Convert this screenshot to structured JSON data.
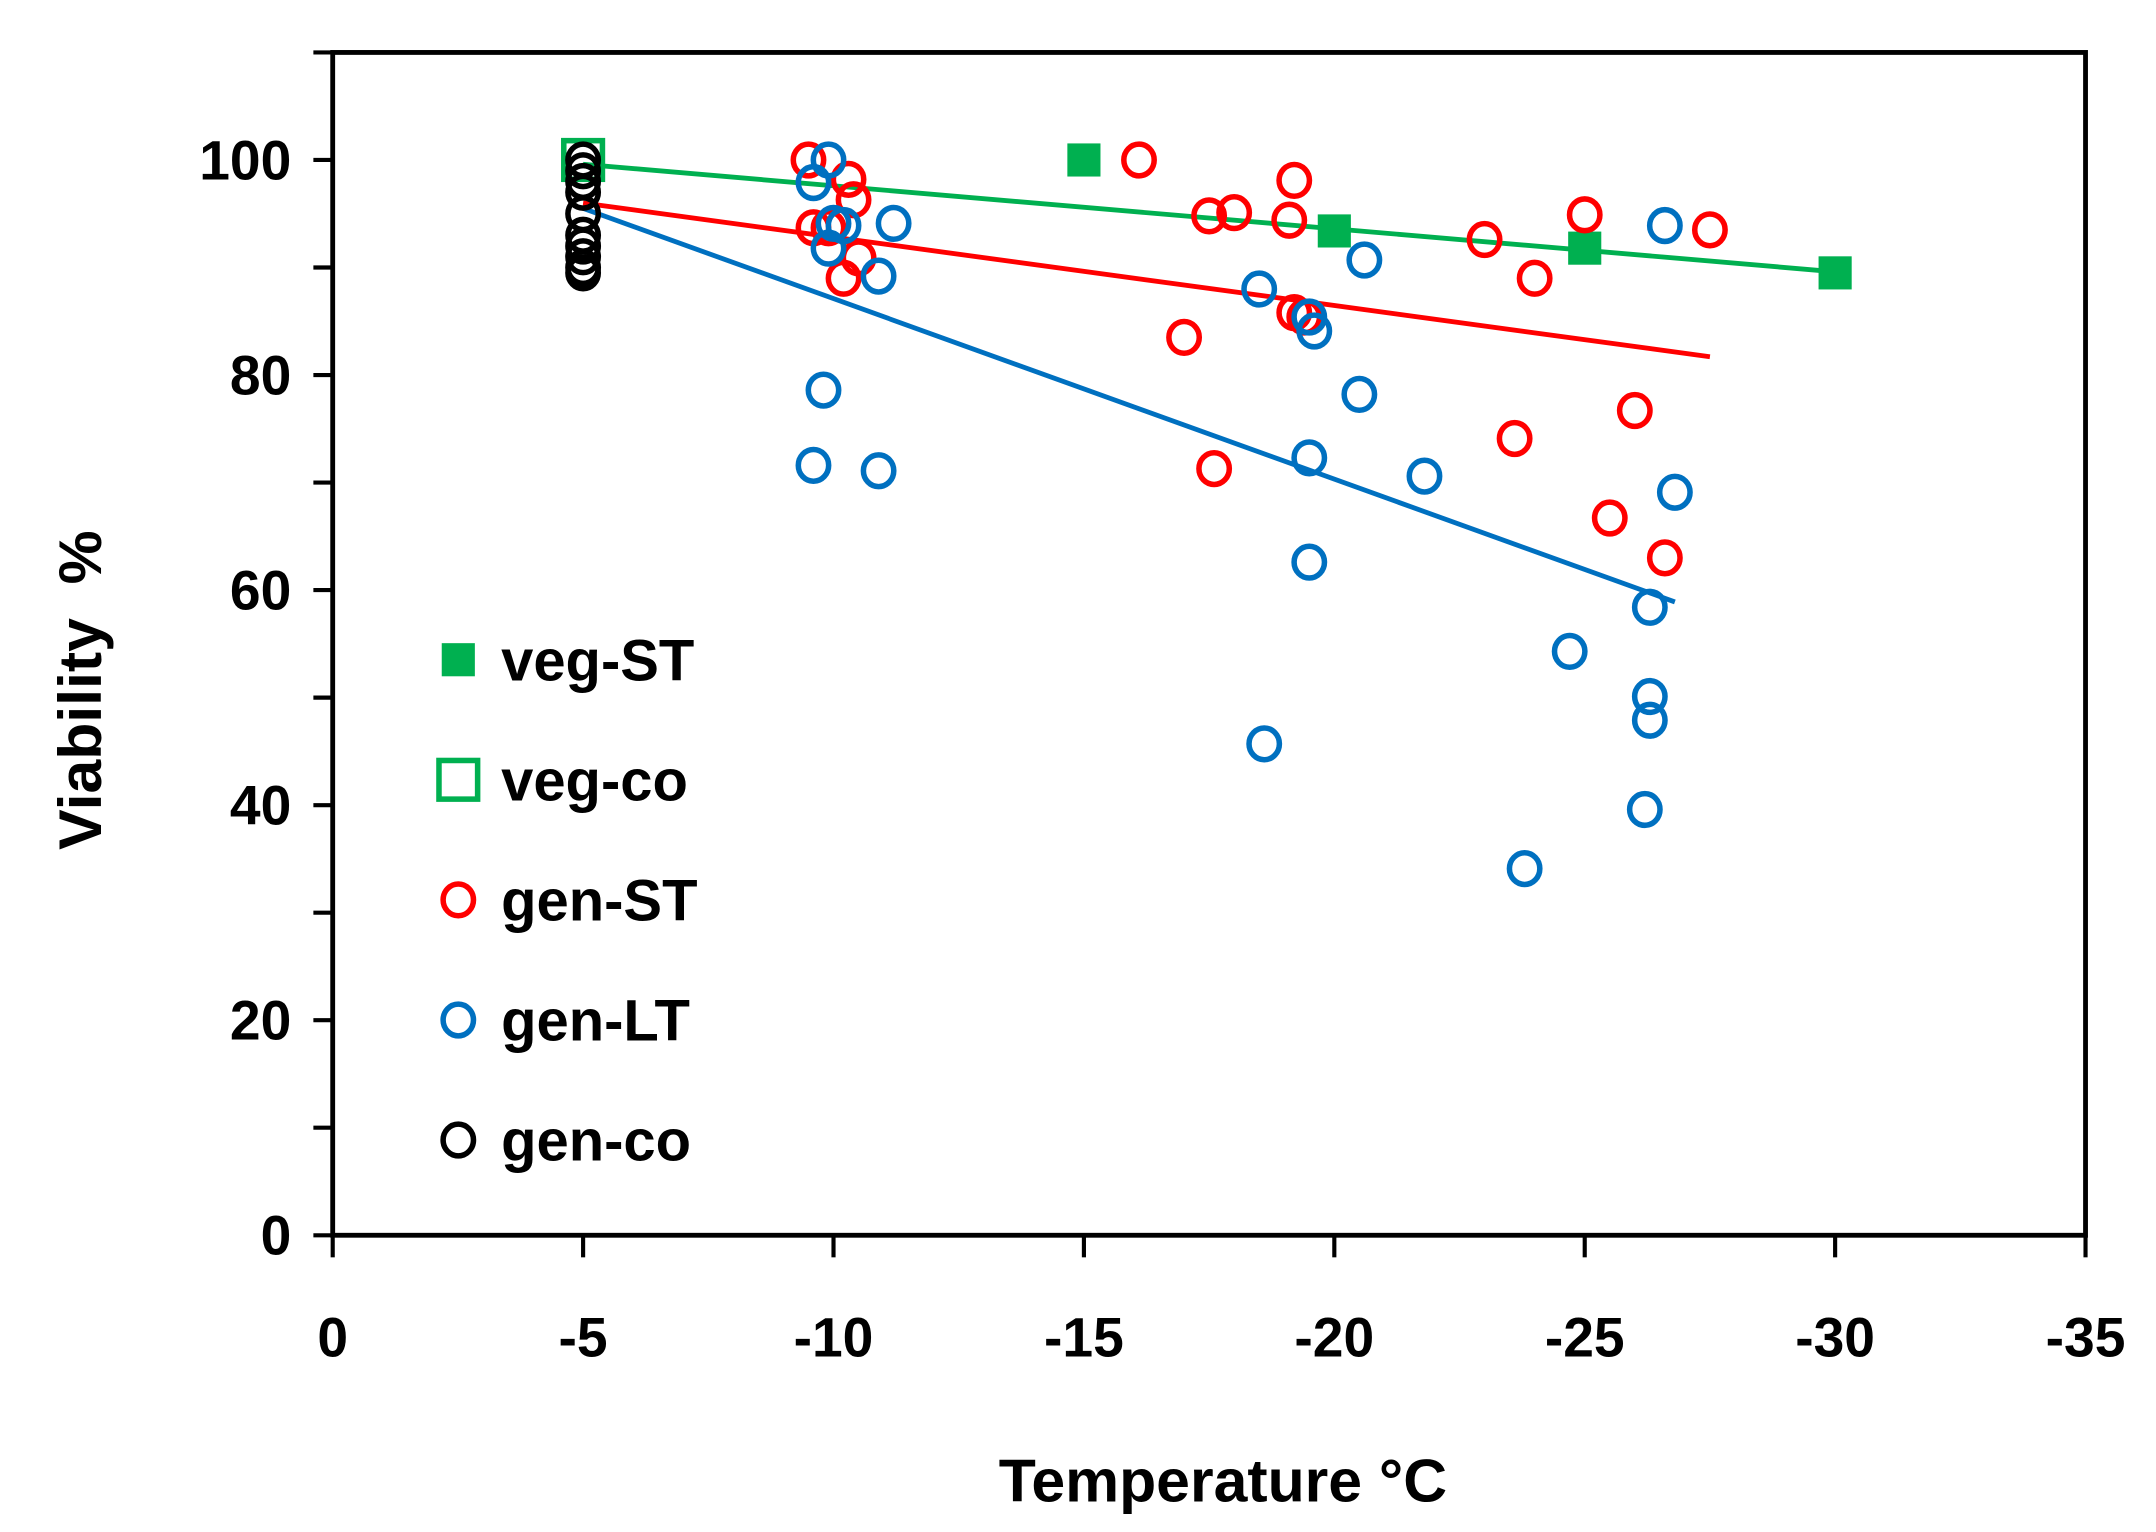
{
  "chart_data": {
    "type": "scatter",
    "title": "",
    "xlabel": "Temperature °C",
    "ylabel": "Viability  %",
    "xlim": [
      0,
      -35
    ],
    "ylim": [
      0,
      110
    ],
    "xticks": [
      "0",
      "-5",
      "-10",
      "-15",
      "-20",
      "-25",
      "-30",
      "-35"
    ],
    "xtick_values": [
      0,
      -5,
      -10,
      -15,
      -20,
      -25,
      -30,
      -35
    ],
    "yticks": [
      "0",
      "20",
      "40",
      "60",
      "80",
      "100"
    ],
    "ytick_values": [
      0,
      20,
      40,
      60,
      80,
      100
    ],
    "legend_position": "left",
    "series": [
      {
        "name": "veg-ST",
        "color": "#00b050",
        "marker": "filled-square",
        "points": [
          [
            -15,
            100
          ],
          [
            -20,
            93.4
          ],
          [
            -25,
            91.8
          ],
          [
            -30,
            89.5
          ]
        ]
      },
      {
        "name": "veg-co",
        "color": "#00b050",
        "marker": "open-square",
        "points": [
          [
            -5,
            100
          ]
        ]
      },
      {
        "name": "gen-ST",
        "color": "#ff0000",
        "marker": "open-circle",
        "points": [
          [
            -9.5,
            100
          ],
          [
            -10.3,
            98.2
          ],
          [
            -10.4,
            96.3
          ],
          [
            -9.6,
            93.7
          ],
          [
            -9.9,
            93.7
          ],
          [
            -10.2,
            89
          ],
          [
            -10.5,
            90.9
          ],
          [
            -16.1,
            100
          ],
          [
            -17,
            83.5
          ],
          [
            -17.5,
            94.8
          ],
          [
            -18,
            95.1
          ],
          [
            -17.6,
            71.3
          ],
          [
            -19.2,
            98.1
          ],
          [
            -19.1,
            94.4
          ],
          [
            -19.2,
            85.8
          ],
          [
            -19.4,
            85.4
          ],
          [
            -23,
            92.6
          ],
          [
            -24,
            89
          ],
          [
            -23.6,
            74.1
          ],
          [
            -25,
            94.9
          ],
          [
            -25.5,
            66.7
          ],
          [
            -26,
            76.7
          ],
          [
            -26.6,
            63
          ],
          [
            -27.5,
            93.5
          ]
        ]
      },
      {
        "name": "gen-LT",
        "color": "#0070c0",
        "marker": "open-circle",
        "points": [
          [
            -9.6,
            97.9
          ],
          [
            -9.9,
            100
          ],
          [
            -10,
            94.1
          ],
          [
            -10.2,
            93.9
          ],
          [
            -9.9,
            91.8
          ],
          [
            -11.2,
            94.1
          ],
          [
            -10.9,
            89.2
          ],
          [
            -9.8,
            78.6
          ],
          [
            -9.6,
            71.6
          ],
          [
            -10.9,
            71.1
          ],
          [
            -18.5,
            88
          ],
          [
            -19.5,
            85.4
          ],
          [
            -19.6,
            84.1
          ],
          [
            -20.6,
            90.7
          ],
          [
            -20.5,
            78.2
          ],
          [
            -19.5,
            72.3
          ],
          [
            -19.5,
            62.6
          ],
          [
            -18.6,
            45.7
          ],
          [
            -21.8,
            70.6
          ],
          [
            -23.8,
            34.1
          ],
          [
            -24.7,
            54.3
          ],
          [
            -26.3,
            58.4
          ],
          [
            -26.3,
            50.1
          ],
          [
            -26.3,
            47.9
          ],
          [
            -26.2,
            39.6
          ],
          [
            -26.8,
            69.1
          ],
          [
            -26.6,
            93.9
          ]
        ]
      },
      {
        "name": "gen-co",
        "color": "#000000",
        "marker": "open-circle",
        "points": [
          [
            -5,
            100
          ],
          [
            -5,
            99
          ],
          [
            -5,
            98
          ],
          [
            -5,
            97
          ],
          [
            -5,
            95
          ],
          [
            -5,
            93
          ],
          [
            -5,
            92
          ],
          [
            -5,
            91
          ],
          [
            -5,
            90
          ],
          [
            -5,
            89.5
          ]
        ]
      }
    ],
    "trendlines": [
      {
        "series": "veg",
        "color": "#00b050",
        "from": [
          -5,
          99.6
        ],
        "to": [
          -30,
          89.6
        ]
      },
      {
        "series": "gen-ST",
        "color": "#ff0000",
        "from": [
          -5,
          96
        ],
        "to": [
          -27.5,
          81.7
        ]
      },
      {
        "series": "gen-LT",
        "color": "#0070c0",
        "from": [
          -5,
          95.5
        ],
        "to": [
          -26.8,
          58.9
        ]
      }
    ]
  }
}
